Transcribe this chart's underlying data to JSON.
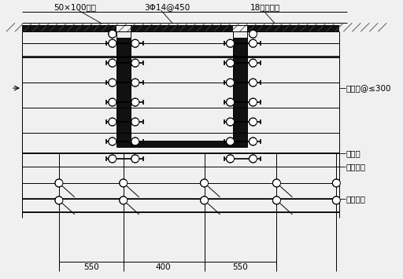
{
  "bg_color": "#f0f0f0",
  "line_color": "#000000",
  "labels": {
    "wood_purlin": "50×100木橄",
    "rebar": "3Φ14@450",
    "plywood": "18厚胶合板",
    "small_bar": "小横杆@≤300",
    "big_bar": "大横杆",
    "steel_tube": "钒管立杆",
    "horiz_bar": "水平拉杆",
    "dim_550_left": "550",
    "dim_400": "400",
    "dim_550_right": "550"
  },
  "figsize": [
    5.12,
    3.55
  ],
  "dpi": 100
}
